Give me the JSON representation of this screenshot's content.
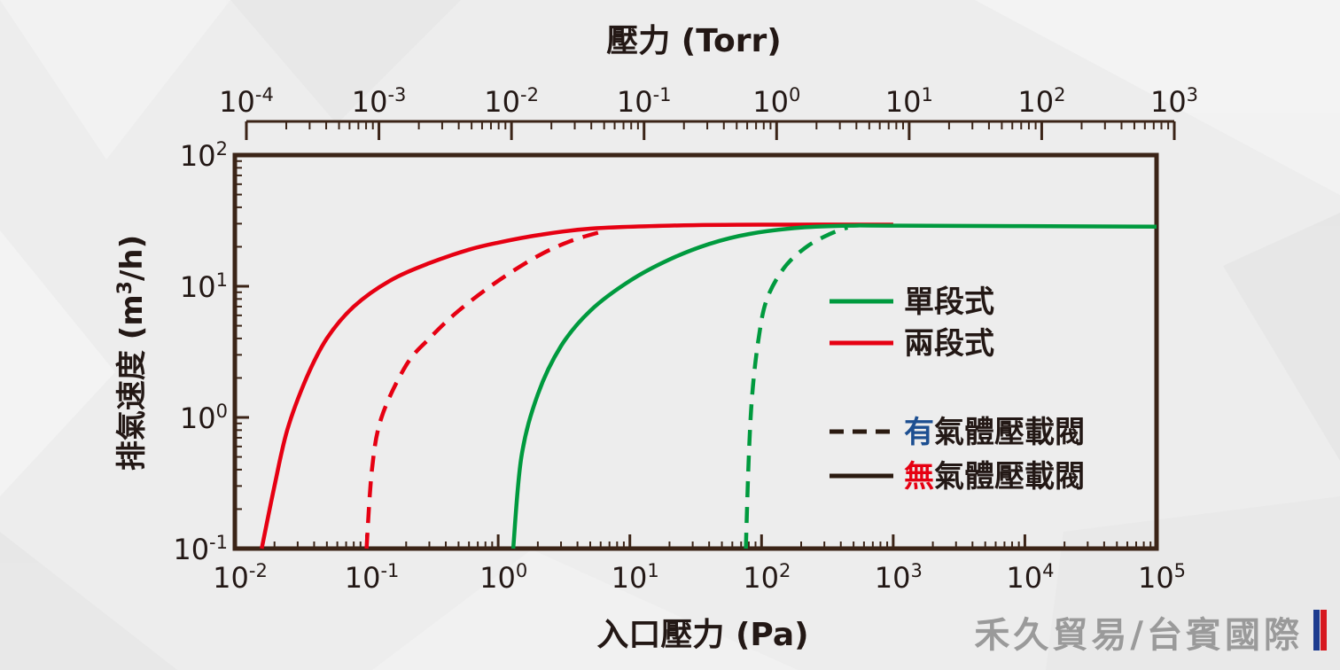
{
  "chart_data": {
    "type": "line",
    "title": "",
    "xlabel": "入口壓力 (Pa)",
    "ylabel": "排氣速度 (m3/h)",
    "ylabel_parts": {
      "main": "排氣速度 (m",
      "sup": "3",
      "tail": "/h)"
    },
    "x2label": "壓力 (Torr)",
    "x_scale": "log",
    "y_scale": "log",
    "xlim": [
      0.01,
      100000
    ],
    "ylim": [
      0.1,
      100
    ],
    "x_ticks": [
      {
        "value": 0.01,
        "base": "10",
        "exp": "-2"
      },
      {
        "value": 0.1,
        "base": "10",
        "exp": "-1"
      },
      {
        "value": 1,
        "base": "10",
        "exp": "0"
      },
      {
        "value": 10,
        "base": "10",
        "exp": "1"
      },
      {
        "value": 100,
        "base": "10",
        "exp": "2"
      },
      {
        "value": 1000,
        "base": "10",
        "exp": "3"
      },
      {
        "value": 10000,
        "base": "10",
        "exp": "4"
      },
      {
        "value": 100000,
        "base": "10",
        "exp": "5"
      }
    ],
    "y_ticks": [
      {
        "value": 0.1,
        "base": "10",
        "exp": "-1"
      },
      {
        "value": 1,
        "base": "10",
        "exp": "0"
      },
      {
        "value": 10,
        "base": "10",
        "exp": "1"
      },
      {
        "value": 100,
        "base": "10",
        "exp": "2"
      }
    ],
    "x2_ticks": [
      {
        "value_pa": 0.0133,
        "base": "10",
        "exp": "-4"
      },
      {
        "value_pa": 0.133,
        "base": "10",
        "exp": "-3"
      },
      {
        "value_pa": 1.33,
        "base": "10",
        "exp": "-2"
      },
      {
        "value_pa": 13.3,
        "base": "10",
        "exp": "-1"
      },
      {
        "value_pa": 133,
        "base": "10",
        "exp": "0"
      },
      {
        "value_pa": 1333,
        "base": "10",
        "exp": "1"
      },
      {
        "value_pa": 13332,
        "base": "10",
        "exp": "2"
      },
      {
        "value_pa": 133322,
        "base": "10",
        "exp": "3"
      }
    ],
    "grid": false,
    "series": [
      {
        "name": "兩段式 無氣體壓載閥",
        "color": "#e60012",
        "style": "solid",
        "points": [
          [
            0.016,
            0.1
          ],
          [
            0.02,
            0.3
          ],
          [
            0.025,
            0.8
          ],
          [
            0.035,
            2
          ],
          [
            0.05,
            4
          ],
          [
            0.08,
            7
          ],
          [
            0.15,
            11
          ],
          [
            0.3,
            15
          ],
          [
            0.6,
            19
          ],
          [
            1,
            21.5
          ],
          [
            2,
            24.5
          ],
          [
            5,
            27.5
          ],
          [
            20,
            29
          ],
          [
            100,
            29.5
          ],
          [
            1000,
            29.5
          ]
        ]
      },
      {
        "name": "兩段式 有氣體壓載閥",
        "color": "#e60012",
        "style": "dashed",
        "points": [
          [
            0.1,
            0.1
          ],
          [
            0.11,
            0.4
          ],
          [
            0.13,
            1
          ],
          [
            0.2,
            2.5
          ],
          [
            0.3,
            4
          ],
          [
            0.5,
            6.5
          ],
          [
            1,
            11
          ],
          [
            2,
            17
          ],
          [
            3.5,
            22
          ],
          [
            6,
            26
          ]
        ]
      },
      {
        "name": "單段式 無氣體壓載閥",
        "color": "#009a3e",
        "style": "solid",
        "points": [
          [
            1.3,
            0.1
          ],
          [
            1.5,
            0.5
          ],
          [
            2,
            1.5
          ],
          [
            3,
            3.5
          ],
          [
            5,
            6.5
          ],
          [
            10,
            11
          ],
          [
            20,
            16
          ],
          [
            40,
            21
          ],
          [
            80,
            25
          ],
          [
            200,
            28
          ],
          [
            500,
            29
          ],
          [
            1000,
            29
          ],
          [
            100000,
            28.5
          ]
        ]
      },
      {
        "name": "單段式 有氣體壓載閥",
        "color": "#009a3e",
        "style": "dashed",
        "points": [
          [
            76,
            0.1
          ],
          [
            80,
            0.5
          ],
          [
            85,
            1.5
          ],
          [
            95,
            4
          ],
          [
            110,
            8
          ],
          [
            150,
            14
          ],
          [
            220,
            20
          ],
          [
            330,
            25
          ],
          [
            450,
            28
          ]
        ]
      }
    ],
    "legend": {
      "placement": "right",
      "color_items": [
        {
          "label": "單段式",
          "color": "#009a3e"
        },
        {
          "label": "兩段式",
          "color": "#e60012"
        }
      ],
      "style_items": [
        {
          "prefix": "有",
          "prefix_color": "#1d4f91",
          "label": "氣體壓載閥",
          "style": "dashed"
        },
        {
          "prefix": "無",
          "prefix_color": "#e60012",
          "label": "氣體壓載閥",
          "style": "solid"
        }
      ]
    }
  },
  "watermark": {
    "text": "禾久貿易/台賓國際",
    "flag_colors": [
      "#1d3c8f",
      "#d71920"
    ]
  }
}
